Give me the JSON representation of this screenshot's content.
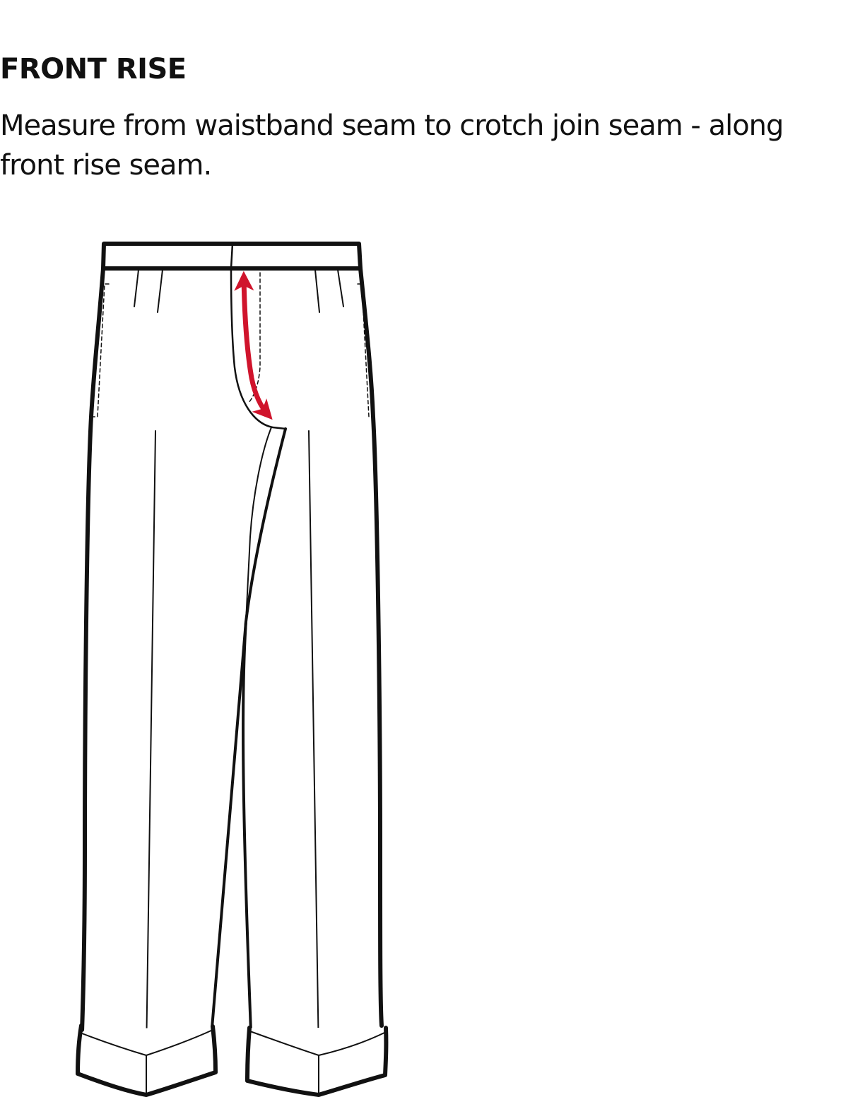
{
  "title": "FRONT RISE",
  "instruction": "Measure from waistband seam to crotch join seam - along front rise seam.",
  "colors": {
    "outline": "#111111",
    "measure_arrow": "#d0142c",
    "background": "#ffffff"
  },
  "icons": {
    "garment": "trousers-icon",
    "measurement": "double-arrow-icon"
  }
}
